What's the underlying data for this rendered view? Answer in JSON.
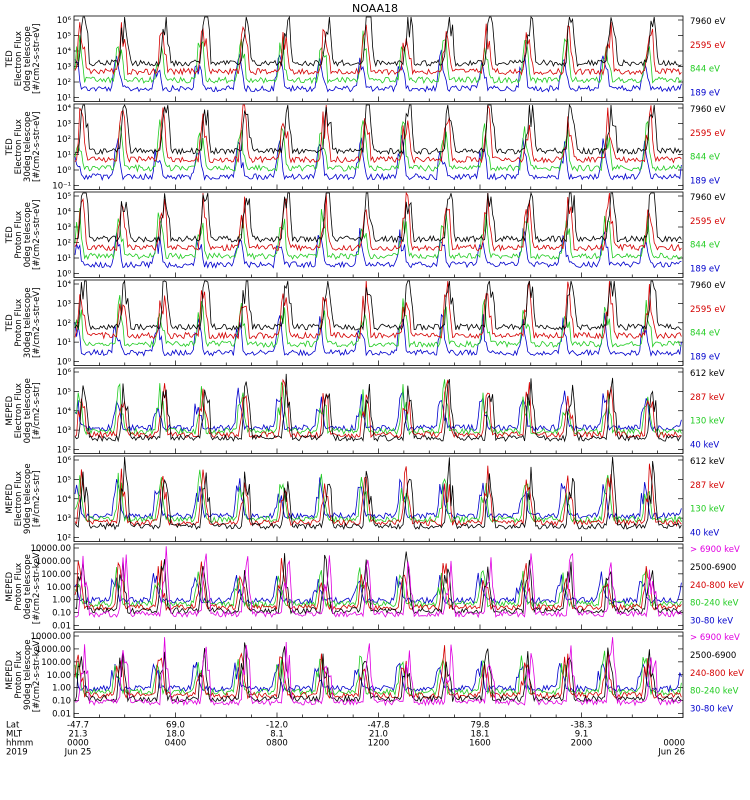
{
  "chart_data": {
    "type": "line",
    "title": "NOAA18",
    "panels": [
      {
        "ylabel": [
          "TED",
          "Electron Flux",
          "0deg telescope",
          "[#/cm2-s-str-eV]"
        ],
        "ticks": [
          "10⁶",
          "10⁵",
          "10⁴",
          "10³",
          "10²",
          "10¹"
        ],
        "series": [
          {
            "name": "7960 eV",
            "color": "#000000"
          },
          {
            "name": "2595 eV",
            "color": "#d40000"
          },
          {
            "name": "844 eV",
            "color": "#22cc22"
          },
          {
            "name": "189 eV",
            "color": "#0000cc"
          }
        ]
      },
      {
        "ylabel": [
          "TED",
          "Electron Flux",
          "30deg telescope",
          "[#/cm2-s-str-eV]"
        ],
        "ticks": [
          "10⁴",
          "10³",
          "10²",
          "10¹",
          "10⁰",
          "10⁻¹"
        ],
        "series": [
          {
            "name": "7960 eV",
            "color": "#000000"
          },
          {
            "name": "2595 eV",
            "color": "#d40000"
          },
          {
            "name": "844 eV",
            "color": "#22cc22"
          },
          {
            "name": "189 eV",
            "color": "#0000cc"
          }
        ]
      },
      {
        "ylabel": [
          "TED",
          "Proton Flux",
          "0deg telescope",
          "[#/cm2-s-str-eV]"
        ],
        "ticks": [
          "10⁵",
          "10⁴",
          "10³",
          "10²",
          "10¹",
          "10⁰"
        ],
        "series": [
          {
            "name": "7960 eV",
            "color": "#000000"
          },
          {
            "name": "2595 eV",
            "color": "#d40000"
          },
          {
            "name": "844 eV",
            "color": "#22cc22"
          },
          {
            "name": "189 eV",
            "color": "#0000cc"
          }
        ]
      },
      {
        "ylabel": [
          "TED",
          "Proton Flux",
          "30deg telescope",
          "[#/cm2-s-str-eV]"
        ],
        "ticks": [
          "10⁴",
          "10³",
          "10²",
          "10¹",
          "10⁰"
        ],
        "series": [
          {
            "name": "7960 eV",
            "color": "#000000"
          },
          {
            "name": "2595 eV",
            "color": "#d40000"
          },
          {
            "name": "844 eV",
            "color": "#22cc22"
          },
          {
            "name": "189 eV",
            "color": "#0000cc"
          }
        ]
      },
      {
        "ylabel": [
          "MEPED",
          "Electron Flux",
          "0deg telescope",
          "[#/cm2-s-str]"
        ],
        "ticks": [
          "10⁶",
          "10⁵",
          "10⁴",
          "10³",
          "10²"
        ],
        "series": [
          {
            "name": "612 keV",
            "color": "#000000"
          },
          {
            "name": "287 keV",
            "color": "#d40000"
          },
          {
            "name": "130 keV",
            "color": "#22cc22"
          },
          {
            "name": "40 keV",
            "color": "#0000cc"
          }
        ]
      },
      {
        "ylabel": [
          "MEPED",
          "Electron Flux",
          "90deg telescope",
          "[#/cm2-s-str]"
        ],
        "ticks": [
          "10⁶",
          "10⁵",
          "10⁴",
          "10³",
          "10²"
        ],
        "series": [
          {
            "name": "612 keV",
            "color": "#000000"
          },
          {
            "name": "287 keV",
            "color": "#d40000"
          },
          {
            "name": "130 keV",
            "color": "#22cc22"
          },
          {
            "name": "40 keV",
            "color": "#0000cc"
          }
        ]
      },
      {
        "ylabel": [
          "MEPED",
          "Proton Flux",
          "0deg telescope",
          "[#/cm2-s-str-keV]"
        ],
        "ticks": [
          "10000.00",
          "1000.00",
          "100.00",
          "10.00",
          "1.00",
          "0.10",
          "0.01"
        ],
        "series": [
          {
            "name": "> 6900 keV",
            "color": "#e000e0"
          },
          {
            "name": "2500-6900",
            "color": "#000000"
          },
          {
            "name": "240-800 keV",
            "color": "#d40000"
          },
          {
            "name": "80-240 keV",
            "color": "#22cc22"
          },
          {
            "name": "30-80 keV",
            "color": "#0000cc"
          }
        ]
      },
      {
        "ylabel": [
          "MEPED",
          "Proton Flux",
          "90deg telescope",
          "[#/cm2-s-str-keV]"
        ],
        "ticks": [
          "10000.00",
          "1000.00",
          "100.00",
          "10.00",
          "1.00",
          "0.10",
          "0.01"
        ],
        "series": [
          {
            "name": "> 6900 keV",
            "color": "#e000e0"
          },
          {
            "name": "2500-6900",
            "color": "#000000"
          },
          {
            "name": "240-800 keV",
            "color": "#d40000"
          },
          {
            "name": "80-240 keV",
            "color": "#22cc22"
          },
          {
            "name": "30-80 keV",
            "color": "#0000cc"
          }
        ]
      }
    ],
    "x_axis": {
      "row_labels": [
        "Lat",
        "MLT",
        "hhmm",
        "2019"
      ],
      "ticks": [
        {
          "lat": "-47.7",
          "mlt": "21.3",
          "hhmm": "0000",
          "date": "Jun 25"
        },
        {
          "lat": "69.0",
          "mlt": "18.0",
          "hhmm": "0400",
          "date": ""
        },
        {
          "lat": "-12.0",
          "mlt": "8.1",
          "hhmm": "0800",
          "date": ""
        },
        {
          "lat": "-47.8",
          "mlt": "21.0",
          "hhmm": "1200",
          "date": ""
        },
        {
          "lat": "79.8",
          "mlt": "18.1",
          "hhmm": "1600",
          "date": ""
        },
        {
          "lat": "-38.3",
          "mlt": "9.1",
          "hhmm": "2000",
          "date": ""
        },
        {
          "lat": "",
          "mlt": "",
          "hhmm": "0000",
          "date": "Jun 26"
        }
      ]
    }
  }
}
